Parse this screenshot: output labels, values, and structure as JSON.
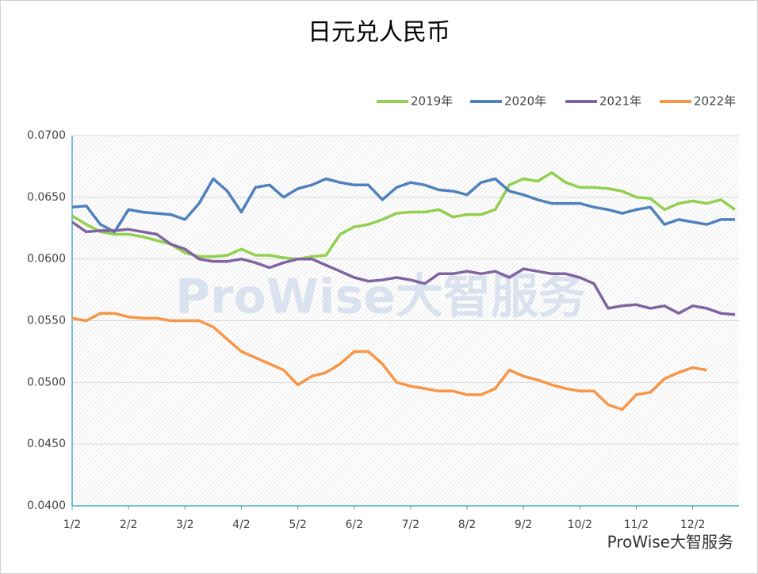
{
  "chart_data": {
    "type": "line",
    "title": "日元兑人民币",
    "categories": [
      "1/2",
      null,
      null,
      null,
      "2/2",
      null,
      null,
      null,
      "3/2",
      null,
      null,
      null,
      "4/2",
      null,
      null,
      null,
      "5/2",
      null,
      null,
      null,
      "6/2",
      null,
      null,
      null,
      "7/2",
      null,
      null,
      null,
      "8/2",
      null,
      null,
      null,
      "9/2",
      null,
      null,
      null,
      "10/2",
      null,
      null,
      null,
      "11/2",
      null,
      null,
      null,
      "12/2",
      null,
      null,
      null
    ],
    "series": [
      {
        "name": "2019年",
        "color": "#92d050",
        "values": [
          0.0635,
          0.0628,
          0.0622,
          0.062,
          0.062,
          0.0618,
          0.0615,
          0.0612,
          0.0605,
          0.0602,
          0.0602,
          0.0603,
          0.0608,
          0.0603,
          0.0603,
          0.0601,
          0.06,
          0.0602,
          0.0603,
          0.062,
          0.0626,
          0.0628,
          0.0632,
          0.0637,
          0.0638,
          0.0638,
          0.064,
          0.0634,
          0.0636,
          0.0636,
          0.064,
          0.066,
          0.0665,
          0.0663,
          0.067,
          0.0662,
          0.0658,
          0.0658,
          0.0657,
          0.0655,
          0.065,
          0.0649,
          0.064,
          0.0645,
          0.0647,
          0.0645,
          0.0648,
          0.064
        ]
      },
      {
        "name": "2020年",
        "color": "#4f81bd",
        "values": [
          0.0642,
          0.0643,
          0.0628,
          0.0622,
          0.064,
          0.0638,
          0.0637,
          0.0636,
          0.0632,
          0.0645,
          0.0665,
          0.0655,
          0.0638,
          0.0658,
          0.066,
          0.065,
          0.0657,
          0.066,
          0.0665,
          0.0662,
          0.066,
          0.066,
          0.0648,
          0.0658,
          0.0662,
          0.066,
          0.0656,
          0.0655,
          0.0652,
          0.0662,
          0.0665,
          0.0655,
          0.0652,
          0.0648,
          0.0645,
          0.0645,
          0.0645,
          0.0642,
          0.064,
          0.0637,
          0.064,
          0.0642,
          0.0628,
          0.0632,
          0.063,
          0.0628,
          0.0632,
          0.0632
        ]
      },
      {
        "name": "2021年",
        "color": "#8064a2",
        "values": [
          0.063,
          0.0622,
          0.0623,
          0.0623,
          0.0624,
          0.0622,
          0.062,
          0.0612,
          0.0608,
          0.06,
          0.0598,
          0.0598,
          0.06,
          0.0597,
          0.0593,
          0.0597,
          0.06,
          0.06,
          0.0595,
          0.059,
          0.0585,
          0.0582,
          0.0583,
          0.0585,
          0.0583,
          0.058,
          0.0588,
          0.0588,
          0.059,
          0.0588,
          0.059,
          0.0585,
          0.0592,
          0.059,
          0.0588,
          0.0588,
          0.0585,
          0.058,
          0.056,
          0.0562,
          0.0563,
          0.056,
          0.0562,
          0.0556,
          0.0562,
          0.056,
          0.0556,
          0.0555
        ]
      },
      {
        "name": "2022年",
        "color": "#f79646",
        "values": [
          0.0552,
          0.055,
          0.0556,
          0.0556,
          0.0553,
          0.0552,
          0.0552,
          0.055,
          0.055,
          0.055,
          0.0545,
          0.0535,
          0.0525,
          0.052,
          0.0515,
          0.051,
          0.0498,
          0.0505,
          0.0508,
          0.0515,
          0.0525,
          0.0525,
          0.0515,
          0.05,
          0.0497,
          0.0495,
          0.0493,
          0.0493,
          0.049,
          0.049,
          0.0495,
          0.051,
          0.0505,
          0.0502,
          0.0498,
          0.0495,
          0.0493,
          0.0493,
          0.0482,
          0.0478,
          0.049,
          0.0492,
          0.0503,
          0.0508,
          0.0512,
          0.051,
          null,
          null
        ]
      }
    ],
    "ylim": [
      0.04,
      0.07
    ],
    "yticks": [
      {
        "value": 0.04,
        "label": "0.0400"
      },
      {
        "value": 0.045,
        "label": "0.0450"
      },
      {
        "value": 0.05,
        "label": "0.0500"
      },
      {
        "value": 0.055,
        "label": "0.0550"
      },
      {
        "value": 0.06,
        "label": "0.0600"
      },
      {
        "value": 0.065,
        "label": "0.0650"
      },
      {
        "value": 0.07,
        "label": "0.0700"
      }
    ],
    "grid": true,
    "legend": "top-right",
    "watermark": "ProWise大智服务",
    "footer": "ProWise大智服务"
  }
}
